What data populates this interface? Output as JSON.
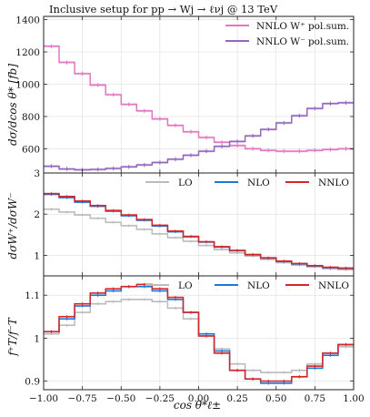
{
  "chart_data": [
    {
      "type": "line",
      "title": "Inclusive setup for pp → Wj → ℓνj @ 13 TeV",
      "ylabel": "dσ/dcos θ* [fb]",
      "ylim": [
        450,
        1420
      ],
      "y_ticks": [
        600,
        800,
        1000,
        1200,
        1400
      ],
      "x_edges": [
        -1.0,
        -0.9,
        -0.8,
        -0.7,
        -0.6,
        -0.5,
        -0.4,
        -0.3,
        -0.2,
        -0.1,
        0.0,
        0.1,
        0.2,
        0.3,
        0.4,
        0.5,
        0.6,
        0.7,
        0.8,
        0.9,
        1.0
      ],
      "legend": "top-right",
      "grid": true,
      "series": [
        {
          "name": "NNLO W⁺ pol.sum.",
          "color": "#e377c2",
          "values": [
            1235,
            1135,
            1065,
            995,
            935,
            875,
            835,
            785,
            745,
            705,
            670,
            640,
            620,
            600,
            590,
            585,
            585,
            590,
            595,
            600
          ]
        },
        {
          "name": "NNLO W⁻ pol.sum.",
          "color": "#9467bd",
          "values": [
            492,
            475,
            470,
            472,
            478,
            488,
            500,
            515,
            535,
            560,
            585,
            615,
            645,
            680,
            720,
            760,
            805,
            850,
            880,
            885
          ]
        }
      ]
    },
    {
      "type": "line",
      "ylabel": "dσW⁺/dσW⁻",
      "ylim": [
        0.5,
        3.0
      ],
      "y_ticks": [
        1,
        2,
        3
      ],
      "x_edges": [
        -1.0,
        -0.9,
        -0.8,
        -0.7,
        -0.6,
        -0.5,
        -0.4,
        -0.3,
        -0.2,
        -0.1,
        0.0,
        0.1,
        0.2,
        0.3,
        0.4,
        0.5,
        0.6,
        0.7,
        0.8,
        0.9,
        1.0
      ],
      "legend": "top",
      "grid": true,
      "series": [
        {
          "name": "LO",
          "color": "#bbbbbb",
          "values": [
            2.12,
            2.05,
            1.98,
            1.9,
            1.8,
            1.72,
            1.63,
            1.52,
            1.43,
            1.34,
            1.24,
            1.14,
            1.06,
            0.98,
            0.9,
            0.82,
            0.76,
            0.72,
            0.67,
            0.65
          ]
        },
        {
          "name": "NLO",
          "color": "#1f77d4",
          "values": [
            2.48,
            2.4,
            2.29,
            2.19,
            2.07,
            1.96,
            1.85,
            1.71,
            1.57,
            1.45,
            1.32,
            1.2,
            1.11,
            1.01,
            0.93,
            0.85,
            0.79,
            0.74,
            0.7,
            0.68
          ]
        },
        {
          "name": "NNLO",
          "color": "#d62728",
          "values": [
            2.5,
            2.43,
            2.32,
            2.21,
            2.09,
            1.98,
            1.87,
            1.73,
            1.59,
            1.46,
            1.33,
            1.21,
            1.12,
            1.02,
            0.94,
            0.86,
            0.8,
            0.75,
            0.71,
            0.69
          ]
        }
      ]
    },
    {
      "type": "line",
      "ylabel": "f⁺T/f⁻T",
      "xlabel": "cos θ*ℓ±",
      "ylim": [
        0.88,
        1.145
      ],
      "y_ticks": [
        0.9,
        1.0,
        1.1
      ],
      "x_ticks": [
        -1.0,
        -0.75,
        -0.5,
        -0.25,
        0.0,
        0.25,
        0.5,
        0.75,
        1.0
      ],
      "x_tick_labels": [
        "−1.00",
        "−0.75",
        "−0.50",
        "−0.25",
        "0.00",
        "0.25",
        "0.50",
        "0.75",
        "1.00"
      ],
      "x_edges": [
        -1.0,
        -0.9,
        -0.8,
        -0.7,
        -0.6,
        -0.5,
        -0.4,
        -0.3,
        -0.2,
        -0.1,
        0.0,
        0.1,
        0.2,
        0.3,
        0.4,
        0.5,
        0.6,
        0.7,
        0.8,
        0.9,
        1.0
      ],
      "legend": "top",
      "grid": true,
      "series": [
        {
          "name": "LO",
          "color": "#bbbbbb",
          "values": [
            1.01,
            1.03,
            1.06,
            1.08,
            1.085,
            1.09,
            1.09,
            1.085,
            1.07,
            1.045,
            1.005,
            0.975,
            0.94,
            0.925,
            0.92,
            0.92,
            0.925,
            0.94,
            0.965,
            0.98
          ]
        },
        {
          "name": "NLO",
          "color": "#1f77d4",
          "values": [
            1.015,
            1.045,
            1.075,
            1.1,
            1.11,
            1.12,
            1.12,
            1.11,
            1.09,
            1.06,
            1.01,
            0.97,
            0.925,
            0.905,
            0.895,
            0.895,
            0.91,
            0.93,
            0.96,
            0.985
          ]
        },
        {
          "name": "NNLO",
          "color": "#d62728",
          "values": [
            1.015,
            1.05,
            1.08,
            1.105,
            1.115,
            1.12,
            1.125,
            1.115,
            1.095,
            1.06,
            1.005,
            0.965,
            0.925,
            0.905,
            0.9,
            0.9,
            0.91,
            0.935,
            0.965,
            0.985
          ]
        }
      ]
    }
  ]
}
